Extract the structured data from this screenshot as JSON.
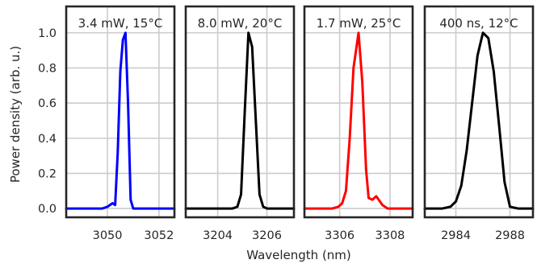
{
  "chart_data": {
    "type": "line",
    "xlabel": "Wavelength (nm)",
    "ylabel": "Power density (arb. u.)",
    "ylim": [
      -0.05,
      1.15
    ],
    "yticks": [
      0.0,
      0.2,
      0.4,
      0.6,
      0.8,
      1.0
    ],
    "ytick_labels": [
      "0.0",
      "0.2",
      "0.4",
      "0.6",
      "0.8",
      "1.0"
    ],
    "grid": true,
    "panels": [
      {
        "title": "3.4 mW, 15°C",
        "color": "#0000ff",
        "xlim": [
          3048.4,
          3052.6
        ],
        "xticks": [
          3050,
          3052
        ],
        "x": [
          3048.4,
          3049.8,
          3050.0,
          3050.2,
          3050.3,
          3050.4,
          3050.5,
          3050.6,
          3050.7,
          3050.8,
          3050.9,
          3051.0,
          3051.1,
          3051.2,
          3052.6
        ],
        "y": [
          0.0,
          0.0,
          0.01,
          0.03,
          0.02,
          0.32,
          0.78,
          0.96,
          1.0,
          0.6,
          0.05,
          0.0,
          0.0,
          0.0,
          0.0
        ]
      },
      {
        "title": "8.0 mW, 20°C",
        "color": "#000000",
        "xlim": [
          3202.7,
          3207.1
        ],
        "xticks": [
          3204,
          3206
        ],
        "x": [
          3202.7,
          3204.6,
          3204.8,
          3204.95,
          3205.1,
          3205.25,
          3205.4,
          3205.55,
          3205.7,
          3205.85,
          3206.0,
          3207.1
        ],
        "y": [
          0.0,
          0.0,
          0.01,
          0.08,
          0.55,
          1.0,
          0.92,
          0.5,
          0.08,
          0.01,
          0.0,
          0.0
        ]
      },
      {
        "title": "1.7 mW, 25°C",
        "color": "#ff0000",
        "xlim": [
          3304.6,
          3308.9
        ],
        "xticks": [
          3306,
          3308
        ],
        "x": [
          3304.6,
          3305.7,
          3305.95,
          3306.1,
          3306.25,
          3306.4,
          3306.55,
          3306.75,
          3306.9,
          3307.05,
          3307.15,
          3307.3,
          3307.45,
          3307.55,
          3307.7,
          3307.9,
          3308.9
        ],
        "y": [
          0.0,
          0.0,
          0.01,
          0.03,
          0.1,
          0.4,
          0.8,
          1.0,
          0.72,
          0.22,
          0.06,
          0.05,
          0.07,
          0.05,
          0.02,
          0.0,
          0.0
        ]
      },
      {
        "title": "400 ns, 12°C",
        "color": "#000000",
        "xlim": [
          2981.7,
          2989.7
        ],
        "xticks": [
          2984,
          2988
        ],
        "x": [
          2981.7,
          2983.0,
          2983.6,
          2984.0,
          2984.4,
          2984.8,
          2985.2,
          2985.6,
          2986.0,
          2986.4,
          2986.8,
          2987.2,
          2987.6,
          2988.0,
          2988.6,
          2989.7
        ],
        "y": [
          0.0,
          0.0,
          0.01,
          0.04,
          0.13,
          0.33,
          0.6,
          0.87,
          1.0,
          0.97,
          0.78,
          0.47,
          0.15,
          0.01,
          0.0,
          0.0
        ]
      }
    ]
  }
}
